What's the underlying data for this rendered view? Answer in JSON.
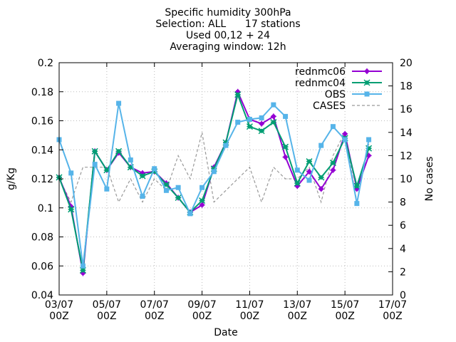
{
  "chart_data": {
    "type": "line",
    "title_lines": [
      "Specific humidity 300hPa",
      "Selection: ALL      17 stations",
      "Used 00,12 + 24",
      "Averaging window: 12h"
    ],
    "xlabel": "Date",
    "ylabel": "g/Kg",
    "y2label": "No cases",
    "x_range": [
      0,
      28
    ],
    "xticks": [
      {
        "x": 0,
        "label1": "03/07",
        "label2": "00Z"
      },
      {
        "x": 4,
        "label1": "05/07",
        "label2": "00Z"
      },
      {
        "x": 8,
        "label1": "07/07",
        "label2": "00Z"
      },
      {
        "x": 12,
        "label1": "09/07",
        "label2": "00Z"
      },
      {
        "x": 16,
        "label1": "11/07",
        "label2": "00Z"
      },
      {
        "x": 20,
        "label1": "13/07",
        "label2": "00Z"
      },
      {
        "x": 24,
        "label1": "15/07",
        "label2": "00Z"
      },
      {
        "x": 28,
        "label1": "17/07",
        "label2": "00Z"
      }
    ],
    "ylim": [
      0.04,
      0.2
    ],
    "yticks": [
      "0.04",
      "0.06",
      "0.08",
      "0.1",
      "0.12",
      "0.14",
      "0.16",
      "0.18",
      "0.2"
    ],
    "y2lim": [
      0,
      20
    ],
    "y2ticks": [
      "0",
      "2",
      "4",
      "6",
      "8",
      "10",
      "12",
      "14",
      "16",
      "18",
      "20"
    ],
    "grid": true,
    "legend_position": "top-right",
    "x_index": [
      0,
      1,
      2,
      3,
      4,
      5,
      6,
      7,
      8,
      9,
      10,
      11,
      12,
      13,
      14,
      15,
      16,
      17,
      18,
      19,
      20,
      21,
      22,
      23,
      24,
      25,
      26
    ],
    "series": [
      {
        "name": "rednmc06",
        "color": "#9400d3",
        "marker": "plus-dot",
        "axis": "y",
        "values": [
          0.121,
          0.101,
          0.055,
          0.139,
          0.126,
          0.138,
          0.128,
          0.124,
          0.125,
          0.117,
          0.107,
          0.097,
          0.102,
          0.128,
          0.145,
          0.18,
          0.161,
          0.158,
          0.163,
          0.135,
          0.115,
          0.125,
          0.113,
          0.126,
          0.151,
          0.113,
          0.136
        ]
      },
      {
        "name": "rednmc04",
        "color": "#009e73",
        "marker": "star",
        "axis": "y",
        "values": [
          0.121,
          0.099,
          0.057,
          0.139,
          0.126,
          0.139,
          0.128,
          0.122,
          0.125,
          0.116,
          0.107,
          0.097,
          0.105,
          0.127,
          0.145,
          0.178,
          0.156,
          0.153,
          0.159,
          0.142,
          0.117,
          0.132,
          0.121,
          0.131,
          0.148,
          0.115,
          0.141
        ]
      },
      {
        "name": "OBS",
        "color": "#56b4e9",
        "marker": "square",
        "axis": "y",
        "values": [
          0.147,
          0.124,
          0.06,
          0.13,
          0.113,
          0.172,
          0.133,
          0.108,
          0.127,
          0.112,
          0.114,
          0.096,
          0.114,
          0.125,
          0.143,
          0.159,
          0.161,
          0.162,
          0.171,
          0.163,
          0.126,
          0.119,
          0.143,
          0.156,
          0.147,
          0.103,
          0.147
        ]
      },
      {
        "name": "CASES",
        "color": "#999999",
        "marker": "none",
        "dashed": true,
        "axis": "y2",
        "values": [
          10,
          8,
          11,
          11,
          11,
          8,
          10,
          8,
          10,
          9,
          12,
          10,
          14,
          8,
          9,
          10,
          11,
          8,
          11,
          10,
          10,
          11,
          8,
          12,
          14,
          8,
          13
        ]
      }
    ]
  }
}
